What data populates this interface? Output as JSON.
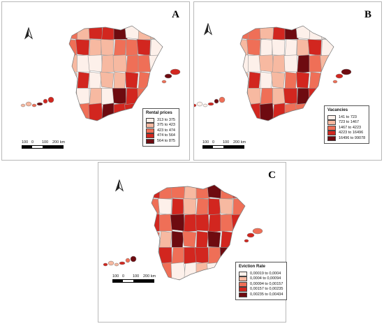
{
  "panels": [
    {
      "letter": "A",
      "legend": {
        "title": "Rental prices",
        "items": [
          {
            "label": "313 to 375",
            "color": "#fdf0ea"
          },
          {
            "label": "375 to 423",
            "color": "#f7b9a1"
          },
          {
            "label": "423 to 474",
            "color": "#ef6f57"
          },
          {
            "label": "474 to 564",
            "color": "#d2261f"
          },
          {
            "label": "564 to 875",
            "color": "#6e0b10"
          }
        ]
      },
      "regions": [
        3,
        2,
        4,
        4,
        5,
        1,
        2,
        2,
        3,
        4,
        2,
        2,
        3,
        3,
        4,
        1,
        2,
        1,
        1,
        2,
        2,
        3,
        3,
        1,
        2,
        4,
        1,
        2,
        2,
        4,
        3,
        5,
        3,
        1,
        2,
        1,
        5,
        4,
        3,
        4,
        2,
        3,
        4,
        5,
        4,
        4,
        3,
        3
      ],
      "islands": [
        5,
        4,
        3,
        2,
        2,
        3,
        5,
        4,
        4
      ]
    },
    {
      "letter": "B",
      "legend": {
        "title": "Vacancies",
        "items": [
          {
            "label": "141 to 723",
            "color": "#fdf0ea"
          },
          {
            "label": "723 to 1467",
            "color": "#f7b9a1"
          },
          {
            "label": "1467 to 4223",
            "color": "#ef6f57"
          },
          {
            "label": "4223 to 16496",
            "color": "#d2261f"
          },
          {
            "label": "16496 to 99078",
            "color": "#6e0b10"
          }
        ]
      },
      "regions": [
        3,
        3,
        2,
        4,
        5,
        1,
        1,
        1,
        2,
        3,
        1,
        1,
        1,
        2,
        4,
        1,
        1,
        1,
        2,
        2,
        1,
        5,
        3,
        2,
        2,
        4,
        1,
        2,
        3,
        4,
        3,
        4,
        2,
        2,
        3,
        2,
        4,
        5,
        4,
        5,
        3,
        4,
        5,
        4,
        3,
        3,
        2,
        2
      ],
      "islands": [
        4,
        5,
        3,
        4,
        1,
        1,
        4,
        5,
        3
      ]
    },
    {
      "letter": "C",
      "legend": {
        "title": "Eviction Rate",
        "items": [
          {
            "label": "0,00019 to 0,0004",
            "color": "#fdf0ea"
          },
          {
            "label": "0,0004 to 0,00094",
            "color": "#f7b9a1"
          },
          {
            "label": "0,00094 to 0,00157",
            "color": "#ef6f57"
          },
          {
            "label": "0,00157 to 0,00235",
            "color": "#d2261f"
          },
          {
            "label": "0,00235 to 0,00434",
            "color": "#6e0b10"
          }
        ]
      },
      "regions": [
        4,
        3,
        3,
        2,
        3,
        5,
        3,
        4,
        3,
        1,
        4,
        2,
        3,
        4,
        2,
        3,
        4,
        3,
        5,
        4,
        4,
        4,
        3,
        4,
        3,
        2,
        5,
        3,
        4,
        5,
        4,
        3,
        5,
        4,
        3,
        4,
        4,
        3,
        5,
        4,
        2,
        3,
        1,
        1,
        2,
        1,
        2,
        1
      ],
      "islands": [
        4,
        3,
        4,
        4,
        2,
        2,
        4,
        3,
        5
      ]
    }
  ],
  "scale": {
    "labels": [
      "100",
      "0",
      "100",
      "200 km"
    ]
  },
  "icons": {
    "north_arrow": "north-arrow-icon"
  }
}
